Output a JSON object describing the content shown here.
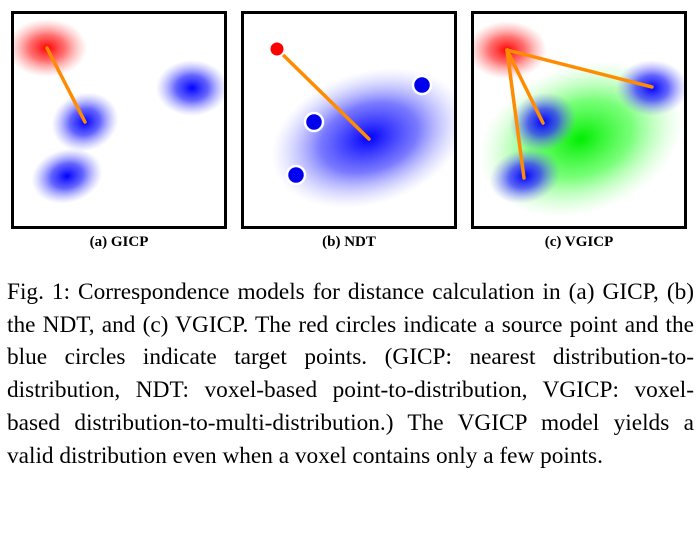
{
  "figure": {
    "panels": [
      {
        "id": "a",
        "label": "(a) GICP"
      },
      {
        "id": "b",
        "label": "(b) NDT"
      },
      {
        "id": "c",
        "label": "(c) VGICP"
      }
    ],
    "colors": {
      "source": "#ff0000",
      "target": "#0000ff",
      "voxel_distribution": "#00ff00",
      "correspondence_line": "#ff8c00",
      "frame": "#000000"
    },
    "caption": "Fig. 1: Correspondence models for distance calculation in (a) GICP, (b) the NDT, and (c) VGICP. The red cir­cles indicate a source point and the blue circles indi­cate target points. (GICP: nearest distribution-to-distribution, NDT: voxel-based point-to-distribution, VGICP: voxel-based distribution-to-multi-distribution.) The VGICP model yields a valid distribution even when a voxel contains only a few points."
  }
}
